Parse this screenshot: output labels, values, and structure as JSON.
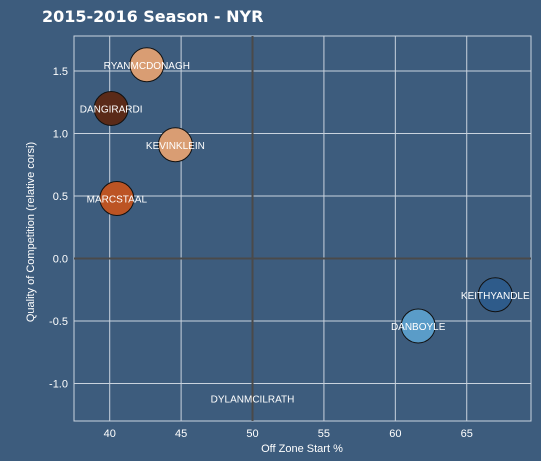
{
  "chart_data": {
    "type": "scatter",
    "title": "2015-2016 Season - NYR",
    "xlabel": "Off Zone Start %",
    "ylabel": "Quality of Competition (relative corsi)",
    "xlim": [
      37.5,
      69.5
    ],
    "ylim": [
      -1.3,
      1.78
    ],
    "xticks": [
      40,
      45,
      50,
      55,
      60,
      65
    ],
    "yticks": [
      -1.0,
      -0.5,
      0.0,
      0.5,
      1.0,
      1.5
    ],
    "ytick_labels": [
      "-1.0",
      "-0.5",
      "0.0",
      "0.5",
      "1.0",
      "1.5"
    ],
    "reference_lines": {
      "x": 50,
      "y": 0
    },
    "grid": true,
    "colors": {
      "background": "#3d5c7d",
      "plot_background": "#3d5c7d",
      "grid": "#c9d3de",
      "reference": "#4a4a4a"
    },
    "points": [
      {
        "label": "RYANMCDONAGH",
        "x": 42.6,
        "y": 1.55,
        "color": "#d99d73"
      },
      {
        "label": "DANGIRARDI",
        "x": 40.1,
        "y": 1.2,
        "color": "#5a2a18"
      },
      {
        "label": "KEVINKLEIN",
        "x": 44.6,
        "y": 0.91,
        "color": "#d99d73"
      },
      {
        "label": "MARCSTAAL",
        "x": 40.5,
        "y": 0.48,
        "color": "#bc5424"
      },
      {
        "label": "KEITHYANDLE",
        "x": 67.0,
        "y": -0.29,
        "color": "#2e5b8a"
      },
      {
        "label": "DANBOYLE",
        "x": 61.6,
        "y": -0.54,
        "color": "#5a9cc8"
      },
      {
        "label": "DYLANMCILRATH",
        "x": 50.0,
        "y": -1.12,
        "color": ""
      }
    ]
  }
}
